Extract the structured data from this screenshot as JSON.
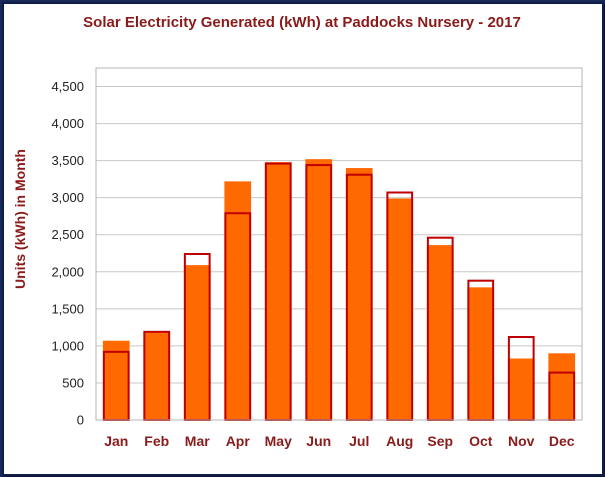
{
  "colors": {
    "bar_fill": "#ff6a00",
    "outline": "#c00000",
    "text": "#8b1a1a"
  },
  "chart_data": {
    "type": "bar",
    "title": "Solar Electricity Generated (kWh) at Paddocks Nursery - 2017",
    "ylabel": "Units (kWh) in Month",
    "xlabel": "",
    "ylim": [
      0,
      4750
    ],
    "grid": true,
    "categories": [
      "Jan",
      "Feb",
      "Mar",
      "Apr",
      "May",
      "Jun",
      "Jul",
      "Aug",
      "Sep",
      "Oct",
      "Nov",
      "Dec"
    ],
    "y_ticks": [
      "0",
      "500",
      "1,000",
      "1,500",
      "2,000",
      "2,500",
      "3,000",
      "3,500",
      "4,000",
      "4,500"
    ],
    "series": [
      {
        "style": "filled",
        "values": [
          1070,
          1190,
          2090,
          3220,
          3480,
          3520,
          3400,
          2990,
          2360,
          1790,
          830,
          900
        ]
      },
      {
        "style": "outline",
        "values": [
          920,
          1190,
          2240,
          2790,
          3460,
          3440,
          3310,
          3070,
          2460,
          1880,
          1120,
          640
        ]
      }
    ]
  }
}
